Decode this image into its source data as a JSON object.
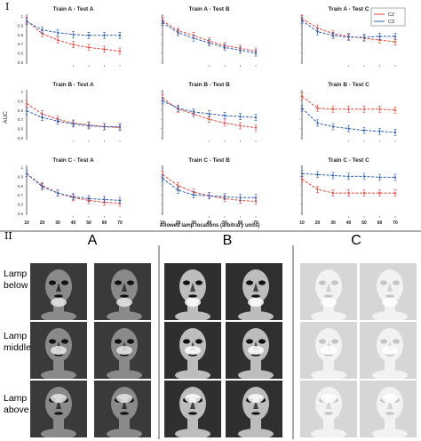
{
  "section_labels": [
    "I",
    "II"
  ],
  "legend": {
    "entries": [
      {
        "label": "C2",
        "color": "#e8463c"
      },
      {
        "label": "C3",
        "color": "#2f5fb8"
      }
    ]
  },
  "shared_axes": {
    "ylabel": "AUC",
    "xlabel": "Allowed lamp locations (arbitrary units)",
    "xticks": [
      "10",
      "20",
      "30",
      "40",
      "50",
      "60",
      "70"
    ],
    "yticks": [
      "1",
      "0.9",
      "0.8",
      "0.7",
      "0.6",
      "0.5"
    ]
  },
  "chart_data": [
    {
      "type": "line",
      "title": "Train A - Test A",
      "x": [
        10,
        20,
        30,
        40,
        50,
        60,
        70
      ],
      "ylim": [
        0.5,
        1.0
      ],
      "series": [
        {
          "name": "C2",
          "color": "#e8463c",
          "values": [
            0.95,
            0.81,
            0.74,
            0.69,
            0.66,
            0.64,
            0.62
          ]
        },
        {
          "name": "C3",
          "color": "#2f5fb8",
          "values": [
            0.94,
            0.85,
            0.82,
            0.8,
            0.79,
            0.79,
            0.79
          ]
        }
      ]
    },
    {
      "type": "line",
      "title": "Train A - Test B",
      "x": [
        10,
        20,
        30,
        40,
        50,
        60,
        70
      ],
      "ylim": [
        0.5,
        1.0
      ],
      "series": [
        {
          "name": "C2",
          "color": "#e8463c",
          "values": [
            0.95,
            0.84,
            0.79,
            0.73,
            0.68,
            0.65,
            0.62
          ]
        },
        {
          "name": "C3",
          "color": "#2f5fb8",
          "values": [
            0.93,
            0.82,
            0.76,
            0.71,
            0.66,
            0.63,
            0.6
          ]
        }
      ]
    },
    {
      "type": "line",
      "title": "Train A - Test C",
      "x": [
        10,
        20,
        30,
        40,
        50,
        60,
        70
      ],
      "ylim": [
        0.5,
        1.0
      ],
      "series": [
        {
          "name": "C2",
          "color": "#e8463c",
          "values": [
            0.97,
            0.87,
            0.81,
            0.78,
            0.76,
            0.74,
            0.72
          ]
        },
        {
          "name": "C3",
          "color": "#2f5fb8",
          "values": [
            0.95,
            0.83,
            0.79,
            0.77,
            0.77,
            0.78,
            0.78
          ]
        }
      ]
    },
    {
      "type": "line",
      "title": "Train B - Test A",
      "x": [
        10,
        20,
        30,
        40,
        50,
        60,
        70
      ],
      "ylim": [
        0.5,
        1.0
      ],
      "series": [
        {
          "name": "C2",
          "color": "#e8463c",
          "values": [
            0.87,
            0.76,
            0.7,
            0.66,
            0.64,
            0.62,
            0.61
          ]
        },
        {
          "name": "C3",
          "color": "#2f5fb8",
          "values": [
            0.79,
            0.72,
            0.68,
            0.65,
            0.63,
            0.62,
            0.62
          ]
        }
      ]
    },
    {
      "type": "line",
      "title": "Train B - Test B",
      "x": [
        10,
        20,
        30,
        40,
        50,
        60,
        70
      ],
      "ylim": [
        0.5,
        1.0
      ],
      "series": [
        {
          "name": "C2",
          "color": "#e8463c",
          "values": [
            0.93,
            0.81,
            0.76,
            0.7,
            0.66,
            0.63,
            0.61
          ]
        },
        {
          "name": "C3",
          "color": "#2f5fb8",
          "values": [
            0.9,
            0.82,
            0.78,
            0.76,
            0.74,
            0.73,
            0.72
          ]
        }
      ]
    },
    {
      "type": "line",
      "title": "Train B - Test C",
      "x": [
        10,
        20,
        30,
        40,
        50,
        60,
        70
      ],
      "ylim": [
        0.5,
        1.0
      ],
      "series": [
        {
          "name": "C2",
          "color": "#e8463c",
          "values": [
            0.95,
            0.82,
            0.81,
            0.81,
            0.81,
            0.81,
            0.8
          ]
        },
        {
          "name": "C3",
          "color": "#2f5fb8",
          "values": [
            0.82,
            0.66,
            0.62,
            0.6,
            0.58,
            0.57,
            0.56
          ]
        }
      ]
    },
    {
      "type": "line",
      "title": "Train C - Test A",
      "x": [
        10,
        20,
        30,
        40,
        50,
        60,
        70
      ],
      "ylim": [
        0.5,
        1.0
      ],
      "series": [
        {
          "name": "C2",
          "color": "#e8463c",
          "values": [
            0.93,
            0.8,
            0.72,
            0.67,
            0.64,
            0.62,
            0.61
          ]
        },
        {
          "name": "C3",
          "color": "#2f5fb8",
          "values": [
            0.93,
            0.79,
            0.72,
            0.68,
            0.66,
            0.65,
            0.64
          ]
        }
      ]
    },
    {
      "type": "line",
      "title": "Train C - Test B",
      "x": [
        10,
        20,
        30,
        40,
        50,
        60,
        70
      ],
      "ylim": [
        0.5,
        1.0
      ],
      "series": [
        {
          "name": "C2",
          "color": "#e8463c",
          "values": [
            0.92,
            0.8,
            0.73,
            0.69,
            0.66,
            0.64,
            0.63
          ]
        },
        {
          "name": "C3",
          "color": "#2f5fb8",
          "values": [
            0.88,
            0.75,
            0.7,
            0.69,
            0.68,
            0.67,
            0.67
          ]
        }
      ]
    },
    {
      "type": "line",
      "title": "Train C - Test C",
      "x": [
        10,
        20,
        30,
        40,
        50,
        60,
        70
      ],
      "ylim": [
        0.5,
        1.0
      ],
      "series": [
        {
          "name": "C2",
          "color": "#e8463c",
          "values": [
            0.87,
            0.76,
            0.72,
            0.72,
            0.72,
            0.72,
            0.72
          ]
        },
        {
          "name": "C3",
          "color": "#2f5fb8",
          "values": [
            0.93,
            0.92,
            0.91,
            0.9,
            0.9,
            0.89,
            0.89
          ]
        }
      ]
    }
  ],
  "face_grid": {
    "columns": [
      "A",
      "B",
      "C"
    ],
    "rows": [
      {
        "label_lines": [
          "Lamp",
          "below"
        ],
        "lamp": "below"
      },
      {
        "label_lines": [
          "Lamp",
          "middle"
        ],
        "lamp": "middle"
      },
      {
        "label_lines": [
          "Lamp",
          "above"
        ],
        "lamp": "above"
      }
    ],
    "column_backgrounds": [
      "#3a3a3a",
      "#2f2f2f",
      "#d6d6d6"
    ]
  }
}
